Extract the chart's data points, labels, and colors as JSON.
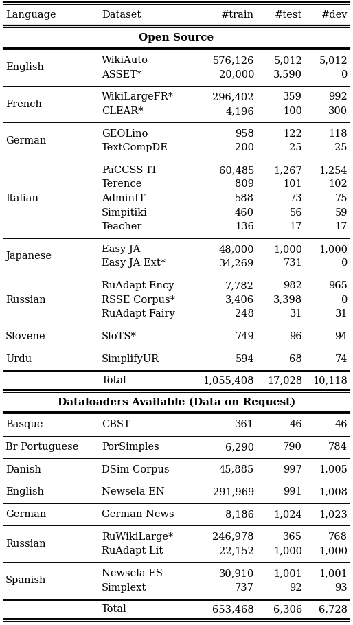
{
  "headers": [
    "Language",
    "Dataset",
    "#train",
    "#test",
    "#dev"
  ],
  "section1_title": "Open Source",
  "section2_title": "Dataloaders Available (Data on Request)",
  "open_source_rows": [
    {
      "lang": "English",
      "datasets": [
        "WikiAuto",
        "ASSET*"
      ],
      "train": [
        "576,126",
        "20,000"
      ],
      "test": [
        "5,012",
        "3,590"
      ],
      "dev": [
        "5,012",
        "0"
      ]
    },
    {
      "lang": "French",
      "datasets": [
        "WikiLargeFR*",
        "CLEAR*"
      ],
      "train": [
        "296,402",
        "4,196"
      ],
      "test": [
        "359",
        "100"
      ],
      "dev": [
        "992",
        "300"
      ]
    },
    {
      "lang": "German",
      "datasets": [
        "GEOLino",
        "TextCompDE"
      ],
      "train": [
        "958",
        "200"
      ],
      "test": [
        "122",
        "25"
      ],
      "dev": [
        "118",
        "25"
      ]
    },
    {
      "lang": "Italian",
      "datasets": [
        "PaCCSS-IT",
        "Terence",
        "AdminIT",
        "Simpitiki",
        "Teacher"
      ],
      "train": [
        "60,485",
        "809",
        "588",
        "460",
        "136"
      ],
      "test": [
        "1,267",
        "101",
        "73",
        "56",
        "17"
      ],
      "dev": [
        "1,254",
        "102",
        "75",
        "59",
        "17"
      ]
    },
    {
      "lang": "Japanese",
      "datasets": [
        "Easy JA",
        "Easy JA Ext*"
      ],
      "train": [
        "48,000",
        "34,269"
      ],
      "test": [
        "1,000",
        "731"
      ],
      "dev": [
        "1,000",
        "0"
      ]
    },
    {
      "lang": "Russian",
      "datasets": [
        "RuAdapt Ency",
        "RSSE Corpus*",
        "RuAdapt Fairy"
      ],
      "train": [
        "7,782",
        "3,406",
        "248"
      ],
      "test": [
        "982",
        "3,398",
        "31"
      ],
      "dev": [
        "965",
        "0",
        "31"
      ]
    },
    {
      "lang": "Slovene",
      "datasets": [
        "SloTS*"
      ],
      "train": [
        "749"
      ],
      "test": [
        "96"
      ],
      "dev": [
        "94"
      ]
    },
    {
      "lang": "Urdu",
      "datasets": [
        "SimplifyUR"
      ],
      "train": [
        "594"
      ],
      "test": [
        "68"
      ],
      "dev": [
        "74"
      ]
    }
  ],
  "open_source_total": {
    "label": "Total",
    "train": "1,055,408",
    "test": "17,028",
    "dev": "10,118"
  },
  "dataloader_rows": [
    {
      "lang": "Basque",
      "datasets": [
        "CBST"
      ],
      "train": [
        "361"
      ],
      "test": [
        "46"
      ],
      "dev": [
        "46"
      ]
    },
    {
      "lang": "Br Portuguese",
      "datasets": [
        "PorSimples"
      ],
      "train": [
        "6,290"
      ],
      "test": [
        "790"
      ],
      "dev": [
        "784"
      ]
    },
    {
      "lang": "Danish",
      "datasets": [
        "DSim Corpus"
      ],
      "train": [
        "45,885"
      ],
      "test": [
        "997"
      ],
      "dev": [
        "1,005"
      ]
    },
    {
      "lang": "English",
      "datasets": [
        "Newsela EN"
      ],
      "train": [
        "291,969"
      ],
      "test": [
        "991"
      ],
      "dev": [
        "1,008"
      ]
    },
    {
      "lang": "German",
      "datasets": [
        "German News"
      ],
      "train": [
        "8,186"
      ],
      "test": [
        "1,024"
      ],
      "dev": [
        "1,023"
      ]
    },
    {
      "lang": "Russian",
      "datasets": [
        "RuWikiLarge*",
        "RuAdapt Lit"
      ],
      "train": [
        "246,978",
        "22,152"
      ],
      "test": [
        "365",
        "1,000"
      ],
      "dev": [
        "768",
        "1,000"
      ]
    },
    {
      "lang": "Spanish",
      "datasets": [
        "Newsela ES",
        "Simplext"
      ],
      "train": [
        "30,910",
        "737"
      ],
      "test": [
        "1,001",
        "92"
      ],
      "dev": [
        "1,001",
        "93"
      ]
    }
  ],
  "dataloader_total": {
    "label": "Total",
    "train": "653,468",
    "test": "6,306",
    "dev": "6,728"
  },
  "font_size": 10.5
}
